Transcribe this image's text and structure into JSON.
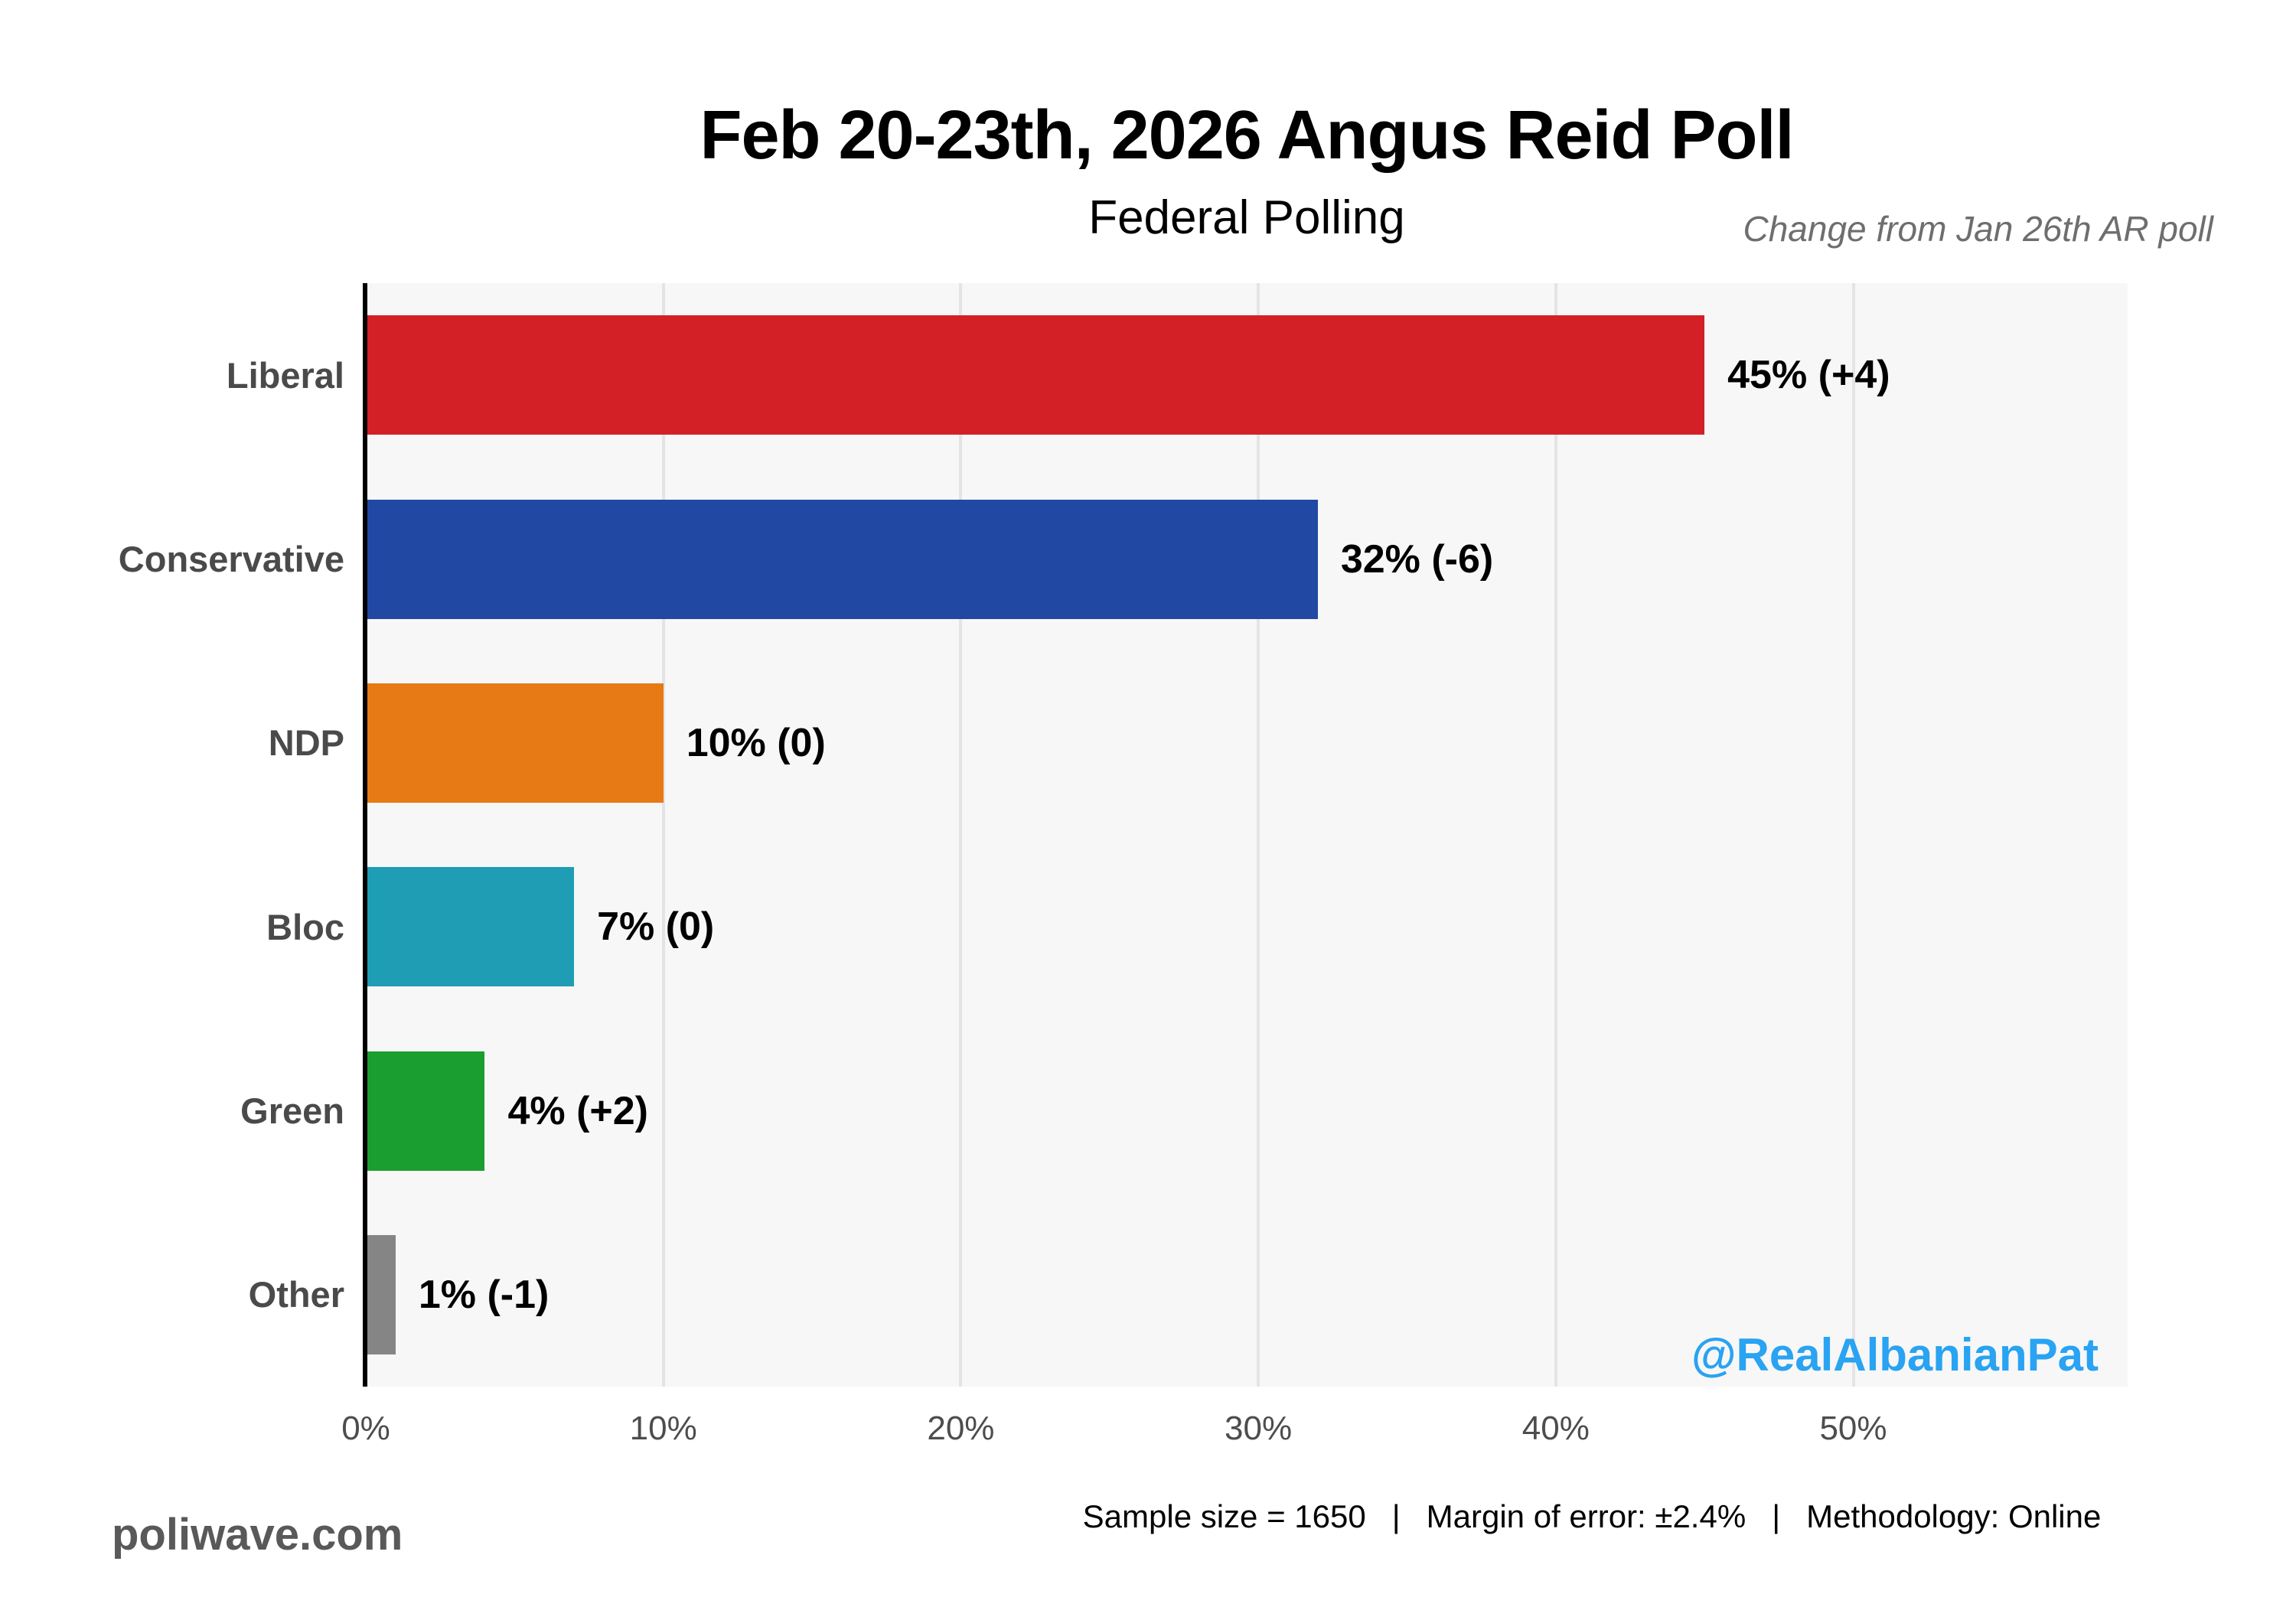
{
  "header": {
    "title": "Feb 20-23th, 2026 Angus Reid Poll",
    "subtitle": "Federal Polling",
    "change_note": "Change from Jan 26th AR poll"
  },
  "chart_data": {
    "type": "bar",
    "orientation": "horizontal",
    "title": "Feb 20-23th, 2026 Angus Reid Poll",
    "subtitle": "Federal Polling",
    "annotation": "Change from Jan 26th AR poll",
    "categories": [
      "Liberal",
      "Conservative",
      "NDP",
      "Bloc",
      "Green",
      "Other"
    ],
    "values": [
      45,
      32,
      10,
      7,
      4,
      1
    ],
    "changes": [
      "+4",
      "-6",
      "0",
      "0",
      "+2",
      "-1"
    ],
    "bar_labels": [
      "45% (+4)",
      "32% (-6)",
      "10% (0)",
      "7% (0)",
      "4% (+2)",
      "1% (-1)"
    ],
    "colors": [
      "#D22026",
      "#2149A4",
      "#E77A15",
      "#1F9DB4",
      "#1A9E2F",
      "#858585"
    ],
    "xlabel": "",
    "ylabel": "",
    "xlim": [
      0,
      59
    ],
    "x_ticks": [
      0,
      10,
      20,
      30,
      40,
      50
    ],
    "x_tick_labels": [
      "0%",
      "10%",
      "20%",
      "30%",
      "40%",
      "50%"
    ],
    "grid": "vertical major gridlines every 10%",
    "legend": "none",
    "panel_background": "#F7F7F7",
    "gridline_color": "#E4E4E6"
  },
  "watermark": {
    "handle": "@RealAlbanianPat",
    "handle_color": "#29A3F2",
    "site": "poliwave.com"
  },
  "footer": {
    "sample_size": "Sample size = 1650",
    "separator": "|",
    "margin_of_error": "Margin of error: ±2.4%",
    "methodology": "Methodology: Online"
  }
}
